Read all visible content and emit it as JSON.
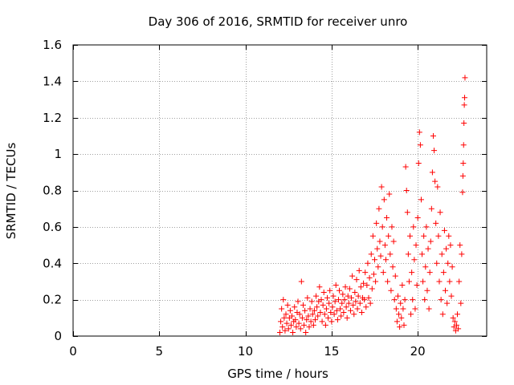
{
  "chart_data": {
    "type": "scatter",
    "title": "Day 306 of 2016, SRMTID for receiver unro",
    "xlabel": "GPS time / hours",
    "ylabel": "SRMTID / TECUs",
    "xlim": [
      0,
      24
    ],
    "ylim": [
      0,
      1.6
    ],
    "xticks": [
      0,
      5,
      10,
      15,
      20
    ],
    "yticks": [
      0,
      0.2,
      0.4,
      0.6,
      0.8,
      1,
      1.2,
      1.4,
      1.6
    ],
    "xtick_labels": [
      "0",
      "5",
      "10",
      "15",
      "20"
    ],
    "ytick_labels": [
      "0",
      "0.2",
      "0.4",
      "0.6",
      "0.8",
      "1",
      "1.2",
      "1.4",
      "1.6"
    ],
    "grid": true,
    "marker": "+",
    "color": "#ff0000",
    "x_range_of_data": [
      12.0,
      22.7
    ],
    "series": [
      {
        "name": "SRMTID",
        "points": [
          [
            12.0,
            0.02
          ],
          [
            12.05,
            0.08
          ],
          [
            12.1,
            0.15
          ],
          [
            12.15,
            0.05
          ],
          [
            12.2,
            0.2
          ],
          [
            12.25,
            0.1
          ],
          [
            12.3,
            0.03
          ],
          [
            12.35,
            0.12
          ],
          [
            12.4,
            0.07
          ],
          [
            12.45,
            0.17
          ],
          [
            12.5,
            0.04
          ],
          [
            12.55,
            0.1
          ],
          [
            12.6,
            0.14
          ],
          [
            12.65,
            0.06
          ],
          [
            12.7,
            0.11
          ],
          [
            12.75,
            0.02
          ],
          [
            12.8,
            0.08
          ],
          [
            12.85,
            0.16
          ],
          [
            12.9,
            0.09
          ],
          [
            12.95,
            0.05
          ],
          [
            13.0,
            0.13
          ],
          [
            13.05,
            0.19
          ],
          [
            13.1,
            0.07
          ],
          [
            13.15,
            0.12
          ],
          [
            13.2,
            0.04
          ],
          [
            13.25,
            0.3
          ],
          [
            13.3,
            0.1
          ],
          [
            13.35,
            0.17
          ],
          [
            13.4,
            0.06
          ],
          [
            13.45,
            0.14
          ],
          [
            13.5,
            0.02
          ],
          [
            13.55,
            0.09
          ],
          [
            13.6,
            0.21
          ],
          [
            13.65,
            0.11
          ],
          [
            13.7,
            0.05
          ],
          [
            13.75,
            0.15
          ],
          [
            13.8,
            0.08
          ],
          [
            13.85,
            0.19
          ],
          [
            13.9,
            0.12
          ],
          [
            13.95,
            0.06
          ],
          [
            14.0,
            0.14
          ],
          [
            14.05,
            0.09
          ],
          [
            14.1,
            0.22
          ],
          [
            14.15,
            0.16
          ],
          [
            14.2,
            0.11
          ],
          [
            14.25,
            0.19
          ],
          [
            14.3,
            0.27
          ],
          [
            14.35,
            0.13
          ],
          [
            14.4,
            0.2
          ],
          [
            14.45,
            0.08
          ],
          [
            14.5,
            0.17
          ],
          [
            14.55,
            0.24
          ],
          [
            14.6,
            0.12
          ],
          [
            14.65,
            0.06
          ],
          [
            14.7,
            0.15
          ],
          [
            14.75,
            0.21
          ],
          [
            14.8,
            0.1
          ],
          [
            14.85,
            0.18
          ],
          [
            14.9,
            0.25
          ],
          [
            14.95,
            0.13
          ],
          [
            15.0,
            0.08
          ],
          [
            15.05,
            0.16
          ],
          [
            15.1,
            0.22
          ],
          [
            15.15,
            0.12
          ],
          [
            15.2,
            0.19
          ],
          [
            15.25,
            0.28
          ],
          [
            15.3,
            0.14
          ],
          [
            15.35,
            0.09
          ],
          [
            15.4,
            0.2
          ],
          [
            15.45,
            0.25
          ],
          [
            15.5,
            0.15
          ],
          [
            15.55,
            0.11
          ],
          [
            15.6,
            0.18
          ],
          [
            15.65,
            0.23
          ],
          [
            15.7,
            0.13
          ],
          [
            15.75,
            0.2
          ],
          [
            15.8,
            0.27
          ],
          [
            15.85,
            0.16
          ],
          [
            15.9,
            0.1
          ],
          [
            15.95,
            0.22
          ],
          [
            16.0,
            0.18
          ],
          [
            16.05,
            0.26
          ],
          [
            16.1,
            0.14
          ],
          [
            16.15,
            0.21
          ],
          [
            16.2,
            0.33
          ],
          [
            16.25,
            0.17
          ],
          [
            16.3,
            0.12
          ],
          [
            16.35,
            0.24
          ],
          [
            16.4,
            0.19
          ],
          [
            16.45,
            0.31
          ],
          [
            16.5,
            0.15
          ],
          [
            16.55,
            0.22
          ],
          [
            16.6,
            0.36
          ],
          [
            16.65,
            0.18
          ],
          [
            16.7,
            0.27
          ],
          [
            16.75,
            0.13
          ],
          [
            16.8,
            0.21
          ],
          [
            16.85,
            0.29
          ],
          [
            16.9,
            0.2
          ],
          [
            16.95,
            0.35
          ],
          [
            17.0,
            0.16
          ],
          [
            17.05,
            0.28
          ],
          [
            17.1,
            0.4
          ],
          [
            17.15,
            0.21
          ],
          [
            17.2,
            0.32
          ],
          [
            17.25,
            0.18
          ],
          [
            17.3,
            0.45
          ],
          [
            17.35,
            0.26
          ],
          [
            17.4,
            0.55
          ],
          [
            17.45,
            0.34
          ],
          [
            17.5,
            0.42
          ],
          [
            17.55,
            0.3
          ],
          [
            17.6,
            0.62
          ],
          [
            17.65,
            0.48
          ],
          [
            17.7,
            0.38
          ],
          [
            17.75,
            0.7
          ],
          [
            17.8,
            0.52
          ],
          [
            17.85,
            0.44
          ],
          [
            17.9,
            0.82
          ],
          [
            17.95,
            0.6
          ],
          [
            18.0,
            0.35
          ],
          [
            18.05,
            0.75
          ],
          [
            18.1,
            0.5
          ],
          [
            18.15,
            0.42
          ],
          [
            18.2,
            0.65
          ],
          [
            18.25,
            0.3
          ],
          [
            18.3,
            0.55
          ],
          [
            18.35,
            0.78
          ],
          [
            18.4,
            0.45
          ],
          [
            18.45,
            0.25
          ],
          [
            18.5,
            0.6
          ],
          [
            18.55,
            0.38
          ],
          [
            18.6,
            0.52
          ],
          [
            18.65,
            0.2
          ],
          [
            18.7,
            0.33
          ],
          [
            18.75,
            0.15
          ],
          [
            18.8,
            0.08
          ],
          [
            18.85,
            0.22
          ],
          [
            18.9,
            0.12
          ],
          [
            18.95,
            0.05
          ],
          [
            19.0,
            0.18
          ],
          [
            19.05,
            0.1
          ],
          [
            19.1,
            0.28
          ],
          [
            19.15,
            0.15
          ],
          [
            19.2,
            0.06
          ],
          [
            19.25,
            0.2
          ],
          [
            19.3,
            0.93
          ],
          [
            19.35,
            0.8
          ],
          [
            19.4,
            0.68
          ],
          [
            19.45,
            0.45
          ],
          [
            19.5,
            0.3
          ],
          [
            19.55,
            0.55
          ],
          [
            19.6,
            0.12
          ],
          [
            19.65,
            0.35
          ],
          [
            19.7,
            0.2
          ],
          [
            19.75,
            0.6
          ],
          [
            19.8,
            0.42
          ],
          [
            19.85,
            0.15
          ],
          [
            19.9,
            0.5
          ],
          [
            19.95,
            0.28
          ],
          [
            20.0,
            0.65
          ],
          [
            20.05,
            0.95
          ],
          [
            20.1,
            1.12
          ],
          [
            20.15,
            1.05
          ],
          [
            20.2,
            0.75
          ],
          [
            20.25,
            0.45
          ],
          [
            20.3,
            0.3
          ],
          [
            20.35,
            0.55
          ],
          [
            20.4,
            0.2
          ],
          [
            20.45,
            0.38
          ],
          [
            20.5,
            0.6
          ],
          [
            20.55,
            0.25
          ],
          [
            20.6,
            0.48
          ],
          [
            20.65,
            0.15
          ],
          [
            20.7,
            0.35
          ],
          [
            20.75,
            0.52
          ],
          [
            20.8,
            0.7
          ],
          [
            20.85,
            0.9
          ],
          [
            20.9,
            1.1
          ],
          [
            20.95,
            1.02
          ],
          [
            21.0,
            0.85
          ],
          [
            21.05,
            0.62
          ],
          [
            21.1,
            0.4
          ],
          [
            21.15,
            0.82
          ],
          [
            21.2,
            0.55
          ],
          [
            21.25,
            0.3
          ],
          [
            21.3,
            0.68
          ],
          [
            21.35,
            0.2
          ],
          [
            21.4,
            0.45
          ],
          [
            21.45,
            0.12
          ],
          [
            21.5,
            0.35
          ],
          [
            21.55,
            0.58
          ],
          [
            21.6,
            0.25
          ],
          [
            21.65,
            0.48
          ],
          [
            21.7,
            0.18
          ],
          [
            21.75,
            0.4
          ],
          [
            21.8,
            0.55
          ],
          [
            21.85,
            0.3
          ],
          [
            21.9,
            0.5
          ],
          [
            21.95,
            0.22
          ],
          [
            22.0,
            0.38
          ],
          [
            22.05,
            0.1
          ],
          [
            22.1,
            0.05
          ],
          [
            22.15,
            0.08
          ],
          [
            22.2,
            0.03
          ],
          [
            22.25,
            0.06
          ],
          [
            22.3,
            0.12
          ],
          [
            22.35,
            0.04
          ],
          [
            22.4,
            0.3
          ],
          [
            22.45,
            0.5
          ],
          [
            22.5,
            0.18
          ],
          [
            22.55,
            0.45
          ],
          [
            22.6,
            0.79
          ],
          [
            22.62,
            0.88
          ],
          [
            22.64,
            0.95
          ],
          [
            22.66,
            1.05
          ],
          [
            22.68,
            1.17
          ],
          [
            22.7,
            1.27
          ],
          [
            22.72,
            1.31
          ],
          [
            22.74,
            1.42
          ]
        ]
      }
    ]
  }
}
